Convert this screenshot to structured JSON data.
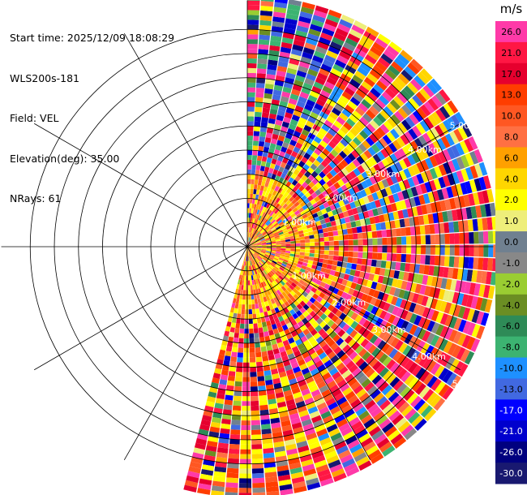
{
  "info": {
    "start_time": "Start time: 2025/12/09 18:08:29",
    "instrument": "WLS200s-181",
    "field": "Field: VEL",
    "elevation": "Elevation(deg): 35.00",
    "nrays": "NRays: 61"
  },
  "chart_data": {
    "type": "heatmap",
    "projection": "polar-ppi",
    "field": "VEL",
    "units": "m/s",
    "elevation_deg": 35.0,
    "n_rays": 61,
    "azimuth_range_deg": [
      0,
      195
    ],
    "max_range_km": 5.2,
    "range_ring_labels": [
      "1.00km",
      "2.00km",
      "3.00km",
      "4.00km",
      "5.00km"
    ],
    "range_ring_km": [
      1,
      2,
      3,
      4,
      5
    ],
    "grid_ring_km": [
      0.5,
      1,
      1.5,
      2,
      2.5,
      3,
      3.5,
      4,
      4.5
    ],
    "spoke_angles_deg": [
      0,
      30,
      60,
      90,
      120,
      150,
      180,
      210,
      240,
      270,
      300,
      330
    ],
    "colorbar": {
      "title": "m/s",
      "ticks": [
        "26.0",
        "21.0",
        "17.0",
        "13.0",
        "10.0",
        "8.0",
        "6.0",
        "4.0",
        "2.0",
        "1.0",
        "0.0",
        "-1.0",
        "-2.0",
        "-4.0",
        "-6.0",
        "-8.0",
        "-10.0",
        "-13.0",
        "-17.0",
        "-21.0",
        "-26.0",
        "-30.0"
      ],
      "colors": [
        "#ff3aa8",
        "#ff1744",
        "#e6002e",
        "#ff3d00",
        "#ff5722",
        "#ff7043",
        "#ffa000",
        "#ffd600",
        "#ffff00",
        "#eeee7a",
        "#708090",
        "#888888",
        "#9acd32",
        "#6b8e23",
        "#2e8b57",
        "#3cb371",
        "#1e90ff",
        "#4169e1",
        "#0000ff",
        "#0000cd",
        "#00007f",
        "#191970"
      ]
    },
    "regions": [
      {
        "from_deg": 0,
        "to_deg": 30,
        "description_values": [
          -21,
          -13,
          -8,
          17,
          26
        ]
      },
      {
        "from_deg": 30,
        "to_deg": 75,
        "description_values": [
          2,
          4,
          13,
          21,
          26,
          -10
        ]
      },
      {
        "from_deg": 75,
        "to_deg": 125,
        "description_values": [
          26,
          21,
          13,
          10,
          8,
          4
        ]
      },
      {
        "from_deg": 125,
        "to_deg": 195,
        "description_values": [
          10,
          13,
          17,
          21,
          26,
          4,
          2
        ]
      }
    ]
  }
}
